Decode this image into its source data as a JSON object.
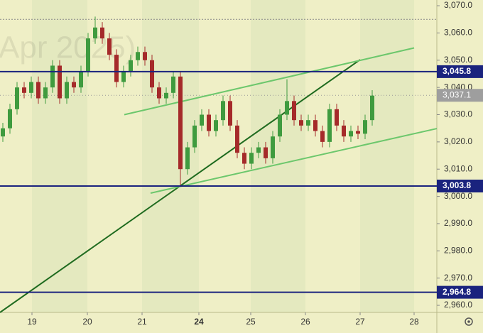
{
  "chart_data": {
    "type": "candlestick",
    "watermark": "Apr 2025)",
    "x": [
      0,
      1,
      2,
      3,
      4,
      5,
      6,
      7,
      8,
      9,
      10,
      11,
      12,
      13,
      14,
      15,
      16,
      17,
      18,
      19,
      20,
      21,
      22,
      23,
      24,
      25,
      26,
      27,
      28,
      29,
      30,
      31,
      32,
      33,
      34,
      35,
      36,
      37,
      38,
      39,
      40,
      41,
      42,
      43,
      44,
      45,
      46,
      47,
      48,
      49,
      50,
      51,
      52
    ],
    "open": [
      3022,
      3025,
      3032,
      3040,
      3038,
      3042,
      3036,
      3040,
      3048,
      3036,
      3042,
      3040,
      3046,
      3058,
      3062,
      3058,
      3052,
      3042,
      3046,
      3050,
      3053,
      3050,
      3040,
      3036,
      3038,
      3044,
      3010,
      3018,
      3026,
      3030,
      3024,
      3028,
      3035,
      3026,
      3016,
      3012,
      3016,
      3018,
      3014,
      3022,
      3030,
      3035,
      3028,
      3026,
      3028,
      3024,
      3020,
      3032,
      3026,
      3022,
      3024,
      3023,
      3028
    ],
    "high": [
      3027,
      3034,
      3042,
      3042,
      3044,
      3044,
      3042,
      3050,
      3050,
      3044,
      3044,
      3048,
      3060,
      3066,
      3064,
      3060,
      3054,
      3048,
      3052,
      3055,
      3055,
      3052,
      3042,
      3040,
      3046,
      3046,
      3020,
      3028,
      3032,
      3032,
      3030,
      3037,
      3037,
      3028,
      3018,
      3018,
      3020,
      3020,
      3024,
      3032,
      3043,
      3037,
      3030,
      3030,
      3030,
      3026,
      3034,
      3034,
      3028,
      3026,
      3026,
      3030,
      3039
    ],
    "low": [
      3020,
      3023,
      3030,
      3036,
      3036,
      3034,
      3034,
      3038,
      3034,
      3034,
      3038,
      3038,
      3044,
      3056,
      3056,
      3050,
      3040,
      3040,
      3044,
      3048,
      3048,
      3038,
      3034,
      3034,
      3036,
      3004,
      3008,
      3016,
      3024,
      3022,
      3022,
      3026,
      3024,
      3014,
      3010,
      3010,
      3014,
      3012,
      3012,
      3020,
      3028,
      3026,
      3024,
      3024,
      3022,
      3018,
      3018,
      3024,
      3020,
      3020,
      3021,
      3021,
      3026
    ],
    "close": [
      3025,
      3032,
      3040,
      3038,
      3042,
      3036,
      3040,
      3048,
      3036,
      3042,
      3040,
      3046,
      3058,
      3062,
      3058,
      3052,
      3042,
      3046,
      3050,
      3053,
      3050,
      3040,
      3036,
      3038,
      3044,
      3010,
      3018,
      3026,
      3030,
      3024,
      3028,
      3035,
      3026,
      3016,
      3012,
      3016,
      3018,
      3014,
      3022,
      3030,
      3035,
      3028,
      3026,
      3028,
      3024,
      3020,
      3032,
      3026,
      3022,
      3024,
      3023,
      3028,
      3037
    ],
    "up_color": "#3f9b3f",
    "down_color": "#a52a2a",
    "xlim": [
      -0.4,
      61.1
    ],
    "xticks": [
      {
        "value": 4.1,
        "label": "19"
      },
      {
        "value": 11.9,
        "label": "20"
      },
      {
        "value": 19.6,
        "label": "21"
      },
      {
        "value": 27.6,
        "label": "24"
      },
      {
        "value": 34.9,
        "label": "25"
      },
      {
        "value": 42.6,
        "label": "26"
      },
      {
        "value": 50.3,
        "label": "27"
      },
      {
        "value": 57.9,
        "label": "28"
      }
    ],
    "ylim": [
      2957.4,
      3072.1
    ],
    "yticks": [
      {
        "value": 2960,
        "label": "2,960.0"
      },
      {
        "value": 2970,
        "label": "2,970.0"
      },
      {
        "value": 2980,
        "label": "2,980.0"
      },
      {
        "value": 2990,
        "label": "2,990.0"
      },
      {
        "value": 3000,
        "label": "3,000.0"
      },
      {
        "value": 3010,
        "label": "3,010.0"
      },
      {
        "value": 3020,
        "label": "3,020.0"
      },
      {
        "value": 3030,
        "label": "3,030.0"
      },
      {
        "value": 3040,
        "label": "3,040.0"
      },
      {
        "value": 3050,
        "label": "3,050.0"
      },
      {
        "value": 3060,
        "label": "3,060.0"
      },
      {
        "value": 3070,
        "label": "3,070.0"
      }
    ],
    "levels": [
      {
        "value": 3045.8,
        "label": "3,045.8"
      },
      {
        "value": 3003.8,
        "label": "3,003.8"
      },
      {
        "value": 2964.8,
        "label": "2,964.8"
      }
    ],
    "level_color": "#1a237e",
    "last_price": {
      "value": 3037.1,
      "label": "3,037.1"
    },
    "reference_line": 3065,
    "trendlines": [
      {
        "x": [
          -0.4,
          50.3
        ],
        "y": [
          2957.4,
          3050.2
        ],
        "color": "#1f6b1f"
      },
      {
        "x": [
          17.1,
          57.9
        ],
        "y": [
          3030.0,
          3054.5
        ],
        "color": "#6cc76c"
      },
      {
        "x": [
          20.8,
          61.1
        ],
        "y": [
          3001.2,
          3024.9
        ],
        "color": "#6cc76c"
      }
    ]
  }
}
